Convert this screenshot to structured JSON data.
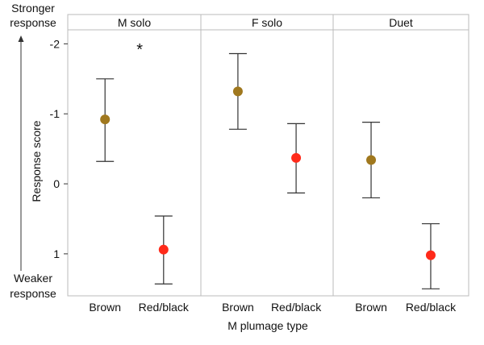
{
  "chart_data": {
    "type": "scatter",
    "panels": [
      "M solo",
      "F solo",
      "Duet"
    ],
    "categories": [
      "Brown",
      "Red/black"
    ],
    "series": [
      {
        "panel": "M solo",
        "category": "Brown",
        "mean": -0.92,
        "lower": -1.5,
        "upper": -0.32,
        "color": "#A0781E"
      },
      {
        "panel": "M solo",
        "category": "Red/black",
        "mean": 0.94,
        "lower": 0.46,
        "upper": 1.43,
        "color": "#FF2A1A"
      },
      {
        "panel": "F solo",
        "category": "Brown",
        "mean": -1.32,
        "lower": -1.86,
        "upper": -0.78,
        "color": "#A0781E"
      },
      {
        "panel": "F solo",
        "category": "Red/black",
        "mean": -0.37,
        "lower": -0.86,
        "upper": 0.13,
        "color": "#FF2A1A"
      },
      {
        "panel": "Duet",
        "category": "Brown",
        "mean": -0.34,
        "lower": -0.88,
        "upper": 0.2,
        "color": "#A0781E"
      },
      {
        "panel": "Duet",
        "category": "Red/black",
        "mean": 1.02,
        "lower": 0.57,
        "upper": 1.5,
        "color": "#FF2A1A"
      }
    ],
    "yticks": [
      -2,
      -1,
      0,
      1
    ],
    "ytick_labels": [
      "-2",
      "-1",
      "0",
      "1"
    ],
    "ylim": [
      -2.2,
      1.6
    ],
    "y_inverted": true,
    "xlabel": "M plumage type",
    "ylabel": "Response score",
    "top_annotation": "Stronger\nresponse",
    "bottom_annotation": "Weaker\nresponse",
    "significance": {
      "panel": "M solo",
      "text": "*"
    },
    "colors": {
      "brown": "#A0781E",
      "red": "#FF2A1A",
      "errorbar": "#333333",
      "frame": "#bbbbbb"
    }
  }
}
